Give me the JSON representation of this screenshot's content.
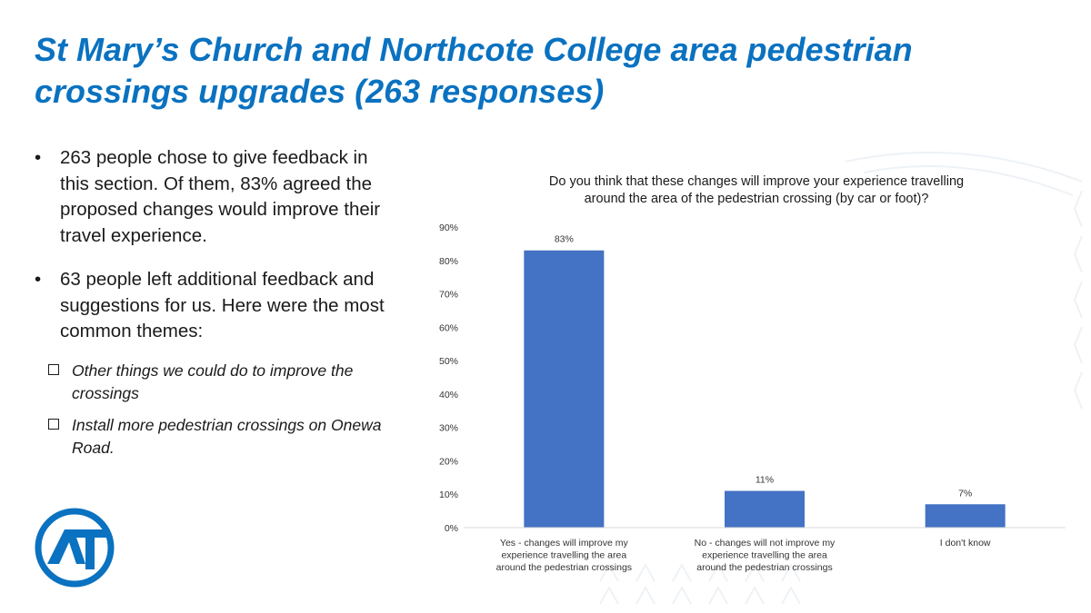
{
  "slide": {
    "title": "St Mary’s Church and Northcote College area pedestrian crossings upgrades (263 responses)"
  },
  "bullets": [
    {
      "marker": "•",
      "text": "263 people chose to give feedback in this section. Of them, 83% agreed the proposed changes would improve their travel experience."
    },
    {
      "marker": "•",
      "text": "63 people left additional feedback and suggestions for us. Here were the most common themes:"
    }
  ],
  "themes": [
    "Other things we could do to improve the crossings",
    "Install more pedestrian crossings on Onewa Road."
  ],
  "logo": {
    "icon": "auckland-transport-logo-icon",
    "text": "AT",
    "color": "#0a72c0"
  },
  "chart_data": {
    "type": "bar",
    "title": "Do you think that these changes will improve your experience travelling around the area of the pedestrian crossing (by car or foot)?",
    "categories": [
      "Yes - changes will improve my experience travelling the area around the pedestrian crossings",
      "No - changes will not improve my experience travelling the area around the pedestrian crossings",
      "I don't know"
    ],
    "values": [
      83,
      11,
      7
    ],
    "data_labels": [
      "83%",
      "11%",
      "7%"
    ],
    "ylim": [
      0,
      90
    ],
    "yticks": [
      "0%",
      "10%",
      "20%",
      "30%",
      "40%",
      "50%",
      "60%",
      "70%",
      "80%",
      "90%"
    ],
    "xlabel": "",
    "ylabel": "",
    "grid": false,
    "legend": "none",
    "bar_color": "#4472c4"
  }
}
